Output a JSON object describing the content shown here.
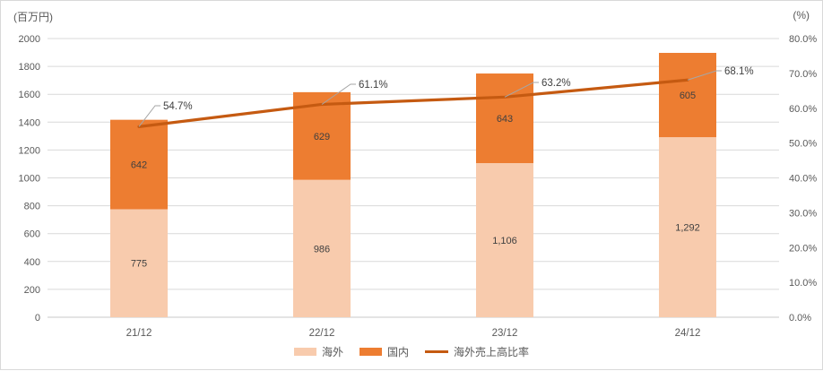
{
  "chart_data": {
    "type": "bar",
    "subtype": "stacked-bars-with-line",
    "categories": [
      "21/12",
      "22/12",
      "23/12",
      "24/12"
    ],
    "bar_series": [
      {
        "name": "海外",
        "values": [
          775,
          986,
          1106,
          1292
        ],
        "labels": [
          "775",
          "986",
          "1,106",
          "1,292"
        ],
        "color": "#F8CBAD"
      },
      {
        "name": "国内",
        "values": [
          642,
          629,
          643,
          605
        ],
        "labels": [
          "642",
          "629",
          "643",
          "605"
        ],
        "color": "#ED7D31"
      }
    ],
    "line_series": {
      "name": "海外売上高比率",
      "values": [
        54.7,
        61.1,
        63.2,
        68.1
      ],
      "labels": [
        "54.7%",
        "61.1%",
        "63.2%",
        "68.1%"
      ],
      "color": "#C55A11"
    },
    "left_axis": {
      "title": "(百万円)",
      "min": 0,
      "max": 2000,
      "step": 200,
      "tick_labels": [
        "0",
        "200",
        "400",
        "600",
        "800",
        "1000",
        "1200",
        "1400",
        "1600",
        "1800",
        "2000"
      ]
    },
    "right_axis": {
      "title": "(%)",
      "min": 0,
      "max": 80,
      "step": 10,
      "tick_labels": [
        "0.0%",
        "10.0%",
        "20.0%",
        "30.0%",
        "40.0%",
        "50.0%",
        "60.0%",
        "70.0%",
        "80.0%"
      ]
    },
    "legend_position": "bottom",
    "grid": true,
    "colors": {
      "gridline": "#D9D9D9",
      "axis_line": "#C9C9C9",
      "axis_text": "#595959",
      "value_text": "#404040",
      "leader_line": "#A6A6A6",
      "background": "#FFFFFF"
    }
  }
}
